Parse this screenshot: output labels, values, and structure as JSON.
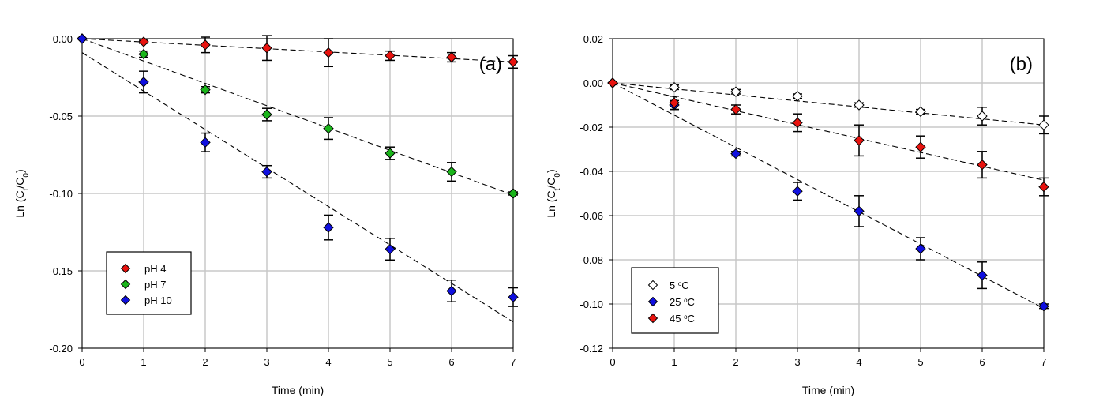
{
  "chart_data": [
    {
      "type": "scatter",
      "panel_label": "(a)",
      "xlabel": "Time (min)",
      "ylabel_main": "Ln (C",
      "ylabel_sub1": "t",
      "ylabel_mid": "/C",
      "ylabel_sub2": "0",
      "ylabel_end": ")",
      "xlim": [
        0,
        7
      ],
      "ylim": [
        -0.2,
        0.0
      ],
      "grid": true,
      "xticks": [
        "0",
        "1",
        "2",
        "3",
        "4",
        "5",
        "6",
        "7"
      ],
      "yticks": [
        "0.00",
        "-0.05",
        "-0.10",
        "-0.15",
        "-0.20"
      ],
      "ytick_values": [
        0,
        -0.05,
        -0.1,
        -0.15,
        -0.2
      ],
      "legend_position": "bottom-left",
      "x": [
        0,
        1,
        2,
        3,
        4,
        5,
        6,
        7
      ],
      "series": [
        {
          "name": "pH 4",
          "color": "#e8130f",
          "values": [
            0,
            -0.002,
            -0.004,
            -0.006,
            -0.009,
            -0.011,
            -0.012,
            -0.015
          ],
          "errors": [
            0,
            0.001,
            0.005,
            0.008,
            0.009,
            0.003,
            0.003,
            0.004
          ],
          "fit": [
            0,
            -0.015
          ]
        },
        {
          "name": "pH 7",
          "color": "#1bb51b",
          "values": [
            0,
            -0.01,
            -0.033,
            -0.049,
            -0.058,
            -0.074,
            -0.086,
            -0.1
          ],
          "errors": [
            0,
            0.002,
            0.002,
            0.004,
            0.007,
            0.004,
            0.006,
            0.001
          ],
          "fit": [
            0,
            -0.101
          ]
        },
        {
          "name": "pH 10",
          "color": "#1010e0",
          "values": [
            0,
            -0.028,
            -0.067,
            -0.086,
            -0.122,
            -0.136,
            -0.163,
            -0.167
          ],
          "errors": [
            0,
            0.007,
            0.006,
            0.004,
            0.008,
            0.007,
            0.007,
            0.006
          ],
          "fit": [
            -0.009,
            -0.183
          ]
        }
      ]
    },
    {
      "type": "scatter",
      "panel_label": "(b)",
      "xlabel": "Time (min)",
      "ylabel_main": "Ln (C",
      "ylabel_sub1": "t",
      "ylabel_mid": "/C",
      "ylabel_sub2": "0",
      "ylabel_end": ")",
      "xlim": [
        0,
        7
      ],
      "ylim": [
        -0.12,
        0.02
      ],
      "grid": true,
      "xticks": [
        "0",
        "1",
        "2",
        "3",
        "4",
        "5",
        "6",
        "7"
      ],
      "yticks": [
        "0.02",
        "0.00",
        "-0.02",
        "-0.04",
        "-0.06",
        "-0.08",
        "-0.10",
        "-0.12"
      ],
      "ytick_values": [
        0.02,
        0,
        -0.02,
        -0.04,
        -0.06,
        -0.08,
        -0.1,
        -0.12
      ],
      "legend_position": "bottom-left",
      "x": [
        0,
        1,
        2,
        3,
        4,
        5,
        6,
        7
      ],
      "series": [
        {
          "name": "5 °C",
          "label_num": "5 ",
          "label_deg": "o",
          "label_unit": "C",
          "color": "#ffffff",
          "values": [
            0,
            -0.002,
            -0.004,
            -0.006,
            -0.01,
            -0.013,
            -0.015,
            -0.019
          ],
          "errors": [
            0,
            0.001,
            0.001,
            0.001,
            0.001,
            0.001,
            0.004,
            0.004
          ],
          "fit": [
            0,
            -0.019
          ]
        },
        {
          "name": "25 °C",
          "label_num": "25 ",
          "label_deg": "o",
          "label_unit": "C",
          "color": "#1010e0",
          "values": [
            0,
            -0.01,
            -0.032,
            -0.049,
            -0.058,
            -0.075,
            -0.087,
            -0.101
          ],
          "errors": [
            0,
            0.002,
            0.001,
            0.004,
            0.007,
            0.005,
            0.006,
            0.001
          ],
          "fit": [
            0,
            -0.102
          ]
        },
        {
          "name": "45 °C",
          "label_num": "45 ",
          "label_deg": "o",
          "label_unit": "C",
          "color": "#e8130f",
          "values": [
            0,
            -0.009,
            -0.012,
            -0.018,
            -0.026,
            -0.029,
            -0.037,
            -0.047
          ],
          "errors": [
            0,
            0.003,
            0.002,
            0.004,
            0.007,
            0.005,
            0.006,
            0.004
          ],
          "fit": [
            0,
            -0.044
          ]
        }
      ]
    }
  ]
}
